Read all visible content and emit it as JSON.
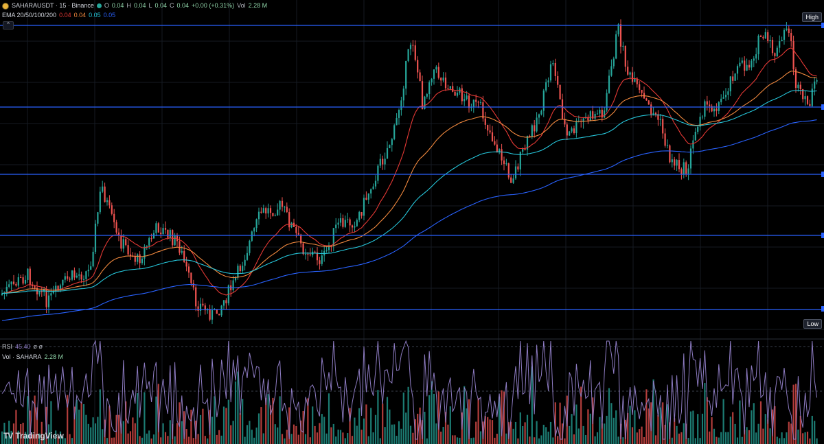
{
  "symbol_bar": {
    "title": "SAHARAUSDT · 15 · Binance",
    "open_label": "O",
    "open": "0.04",
    "high_label": "H",
    "high": "0.04",
    "low_label": "L",
    "low": "0.04",
    "close_label": "C",
    "close": "0.04",
    "change": "+0.00 (+0.31%)",
    "vol_label": "Vol",
    "vol": "2.28 M"
  },
  "ema_legend": {
    "title": "EMA 20/50/100/200",
    "v20": "0.04",
    "v50": "0.04",
    "v100": "0.05",
    "v200": "0.05"
  },
  "rsi_legend": {
    "title": "RSI",
    "value": "45.40",
    "extra": "ø ø"
  },
  "vol_legend": {
    "title": "Vol · SAHARA",
    "value": "2.28 M"
  },
  "price_tags": {
    "high": "High",
    "low": "Low"
  },
  "branding": {
    "name": "TradingView",
    "mark": "TV"
  },
  "colors": {
    "background": "#000000",
    "up": "#26a69a",
    "down": "#ef5350",
    "ema20": "#e53935",
    "ema50": "#f0883e",
    "ema100": "#26c6da",
    "ema200": "#2962ff",
    "rsi": "#8e7cc3",
    "level_line": "#2962ff"
  }
}
